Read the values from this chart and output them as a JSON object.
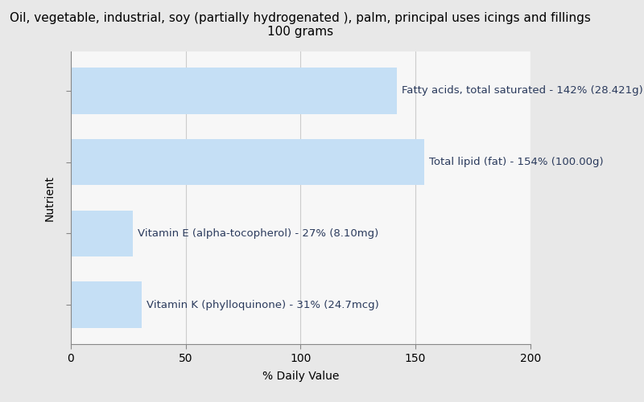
{
  "title_line1": "Oil, vegetable, industrial, soy (partially hydrogenated ), palm, principal uses icings and fillings",
  "title_line2": "100 grams",
  "xlabel": "% Daily Value",
  "ylabel": "Nutrient",
  "bars": [
    {
      "label": "Fatty acids, total saturated - 142% (28.421g)",
      "value": 142
    },
    {
      "label": "Total lipid (fat) - 154% (100.00g)",
      "value": 154
    },
    {
      "label": "Vitamin E (alpha-tocopherol) - 27% (8.10mg)",
      "value": 27
    },
    {
      "label": "Vitamin K (phylloquinone) - 31% (24.7mcg)",
      "value": 31
    }
  ],
  "bar_color": "#c5dff5",
  "text_color": "#2a3a5c",
  "background_color": "#e8e8e8",
  "plot_background_color": "#f7f7f7",
  "xlim": [
    0,
    200
  ],
  "xticks": [
    0,
    50,
    100,
    150,
    200
  ],
  "grid_color": "#cccccc",
  "title_fontsize": 11,
  "label_fontsize": 9.5,
  "axis_label_fontsize": 10,
  "bar_height": 0.65,
  "bar_gap": 0.15
}
